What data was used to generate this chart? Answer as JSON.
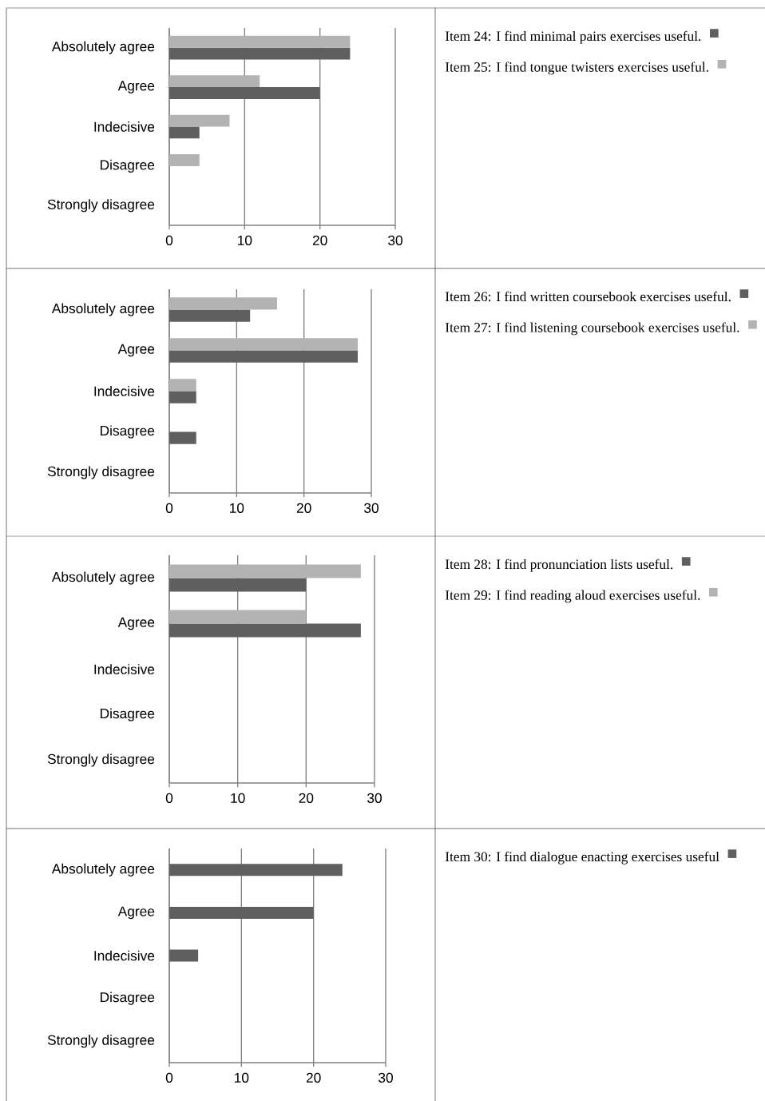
{
  "chart_data": [
    {
      "type": "bar",
      "orientation": "horizontal",
      "categories": [
        "Absolutely agree",
        "Agree",
        "Indecisive",
        "Disagree",
        "Strongly disagree"
      ],
      "xlim": [
        0,
        30
      ],
      "xticks": [
        0,
        10,
        20,
        30
      ],
      "grid": "x",
      "legend": "right",
      "series": [
        {
          "name": "Item 24: I find minimal pairs exercises useful.",
          "color": "#5f5f5f",
          "values": [
            24,
            20,
            4,
            0,
            0
          ]
        },
        {
          "name": "Item 25: I find tongue twisters exercises useful.",
          "color": "#b3b3b3",
          "values": [
            24,
            12,
            8,
            4,
            0
          ]
        }
      ]
    },
    {
      "type": "bar",
      "orientation": "horizontal",
      "categories": [
        "Absolutely agree",
        "Agree",
        "Indecisive",
        "Disagree",
        "Strongly disagree"
      ],
      "xlim": [
        0,
        30
      ],
      "xticks": [
        0,
        10,
        20,
        30
      ],
      "grid": "x",
      "legend": "right",
      "series": [
        {
          "name": "Item 26: I find written coursebook exercises useful.",
          "color": "#5f5f5f",
          "values": [
            12,
            28,
            4,
            4,
            0
          ]
        },
        {
          "name": "Item 27: I find listening coursebook exercises useful.",
          "color": "#b3b3b3",
          "values": [
            16,
            28,
            4,
            0,
            0
          ]
        }
      ]
    },
    {
      "type": "bar",
      "orientation": "horizontal",
      "categories": [
        "Absolutely agree",
        "Agree",
        "Indecisive",
        "Disagree",
        "Strongly disagree"
      ],
      "xlim": [
        0,
        30
      ],
      "xticks": [
        0,
        10,
        20,
        30
      ],
      "grid": "x",
      "legend": "right",
      "series": [
        {
          "name": "Item 28: I find pronunciation lists useful.",
          "color": "#5f5f5f",
          "values": [
            20,
            28,
            0,
            0,
            0
          ]
        },
        {
          "name": "Item 29: I find reading aloud exercises useful.",
          "color": "#b3b3b3",
          "values": [
            28,
            20,
            0,
            0,
            0
          ]
        }
      ]
    },
    {
      "type": "bar",
      "orientation": "horizontal",
      "categories": [
        "Absolutely agree",
        "Agree",
        "Indecisive",
        "Disagree",
        "Strongly disagree"
      ],
      "xlim": [
        0,
        30
      ],
      "xticks": [
        0,
        10,
        20,
        30
      ],
      "grid": "x",
      "legend": "right",
      "series": [
        {
          "name": "Item 30: I find dialogue enacting exercises useful",
          "color": "#5f5f5f",
          "values": [
            24,
            20,
            4,
            0,
            0
          ]
        }
      ]
    }
  ]
}
